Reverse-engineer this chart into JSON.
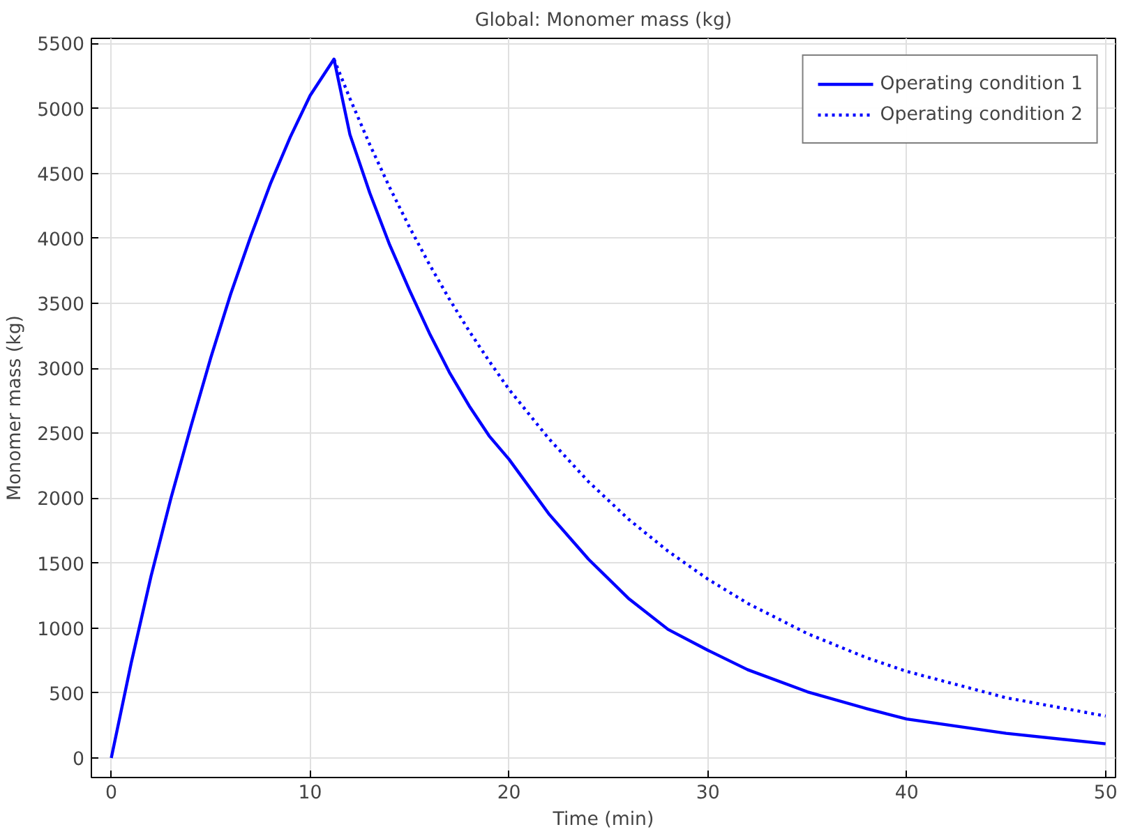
{
  "chart_data": {
    "type": "line",
    "title": "Global: Monomer mass (kg)",
    "xlabel": "Time (min)",
    "ylabel": "Monomer mass (kg)",
    "xlim": [
      -1,
      50.5
    ],
    "ylim": [
      -150,
      5540
    ],
    "xticks": [
      0,
      10,
      20,
      30,
      40,
      50
    ],
    "yticks": [
      0,
      500,
      1000,
      1500,
      2000,
      2500,
      3000,
      3500,
      4000,
      4500,
      5000,
      5500
    ],
    "grid": true,
    "legend": "top right",
    "marker": "none",
    "series": [
      {
        "name": "Operating condition 1",
        "color": "#0000ff",
        "line_style": "solid",
        "x": [
          0,
          1,
          2,
          3,
          4,
          5,
          6,
          7,
          8,
          9,
          10,
          11.2,
          12,
          13,
          14,
          15,
          16,
          17,
          18,
          19,
          20,
          22,
          24,
          26,
          28,
          30,
          32,
          35,
          38,
          40,
          45,
          50
        ],
        "values": [
          0,
          730,
          1400,
          2000,
          2550,
          3080,
          3570,
          4010,
          4420,
          4780,
          5100,
          5380,
          4800,
          4350,
          3950,
          3600,
          3270,
          2970,
          2710,
          2480,
          2300,
          1880,
          1530,
          1230,
          990,
          830,
          680,
          510,
          380,
          300,
          190,
          110
        ]
      },
      {
        "name": "Operating condition 2",
        "color": "#0000ff",
        "line_style": "dotted",
        "x": [
          11.2,
          12,
          13,
          14,
          15,
          16,
          17,
          18,
          19,
          20,
          22,
          24,
          26,
          28,
          30,
          32,
          35,
          38,
          40,
          45,
          50
        ],
        "values": [
          5380,
          5077,
          4722,
          4392,
          4085,
          3799,
          3533,
          3286,
          3056,
          2838,
          2459,
          2127,
          1840,
          1592,
          1377,
          1191,
          958,
          771,
          667,
          464,
          323
        ]
      }
    ]
  }
}
